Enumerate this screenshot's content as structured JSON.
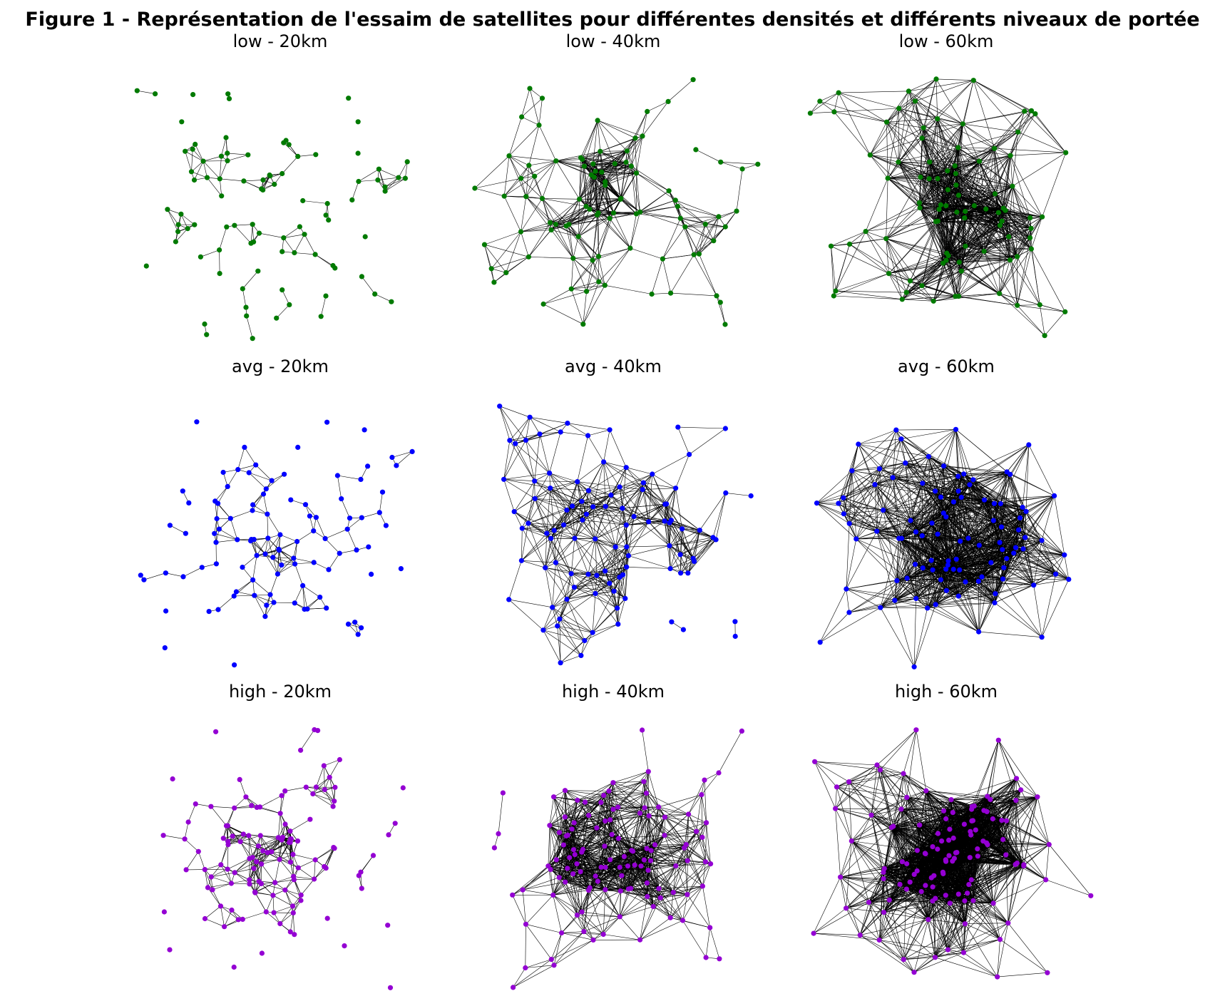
{
  "figure": {
    "title": "Figure 1 - Représentation de l'essaim de satellites pour différentes densités et différents niveaux de portée"
  },
  "panels": [
    {
      "title": "low - 20km",
      "density": "low",
      "range_km": 20,
      "node_color": "#007a00",
      "node_count": 90,
      "seed": 11
    },
    {
      "title": "low - 40km",
      "density": "low",
      "range_km": 40,
      "node_color": "#007a00",
      "node_count": 90,
      "seed": 12
    },
    {
      "title": "low - 60km",
      "density": "low",
      "range_km": 60,
      "node_color": "#007a00",
      "node_count": 90,
      "seed": 13
    },
    {
      "title": "avg - 20km",
      "density": "avg",
      "range_km": 20,
      "node_color": "#0000ff",
      "node_count": 100,
      "seed": 21
    },
    {
      "title": "avg - 40km",
      "density": "avg",
      "range_km": 40,
      "node_color": "#0000ff",
      "node_count": 100,
      "seed": 22
    },
    {
      "title": "avg - 60km",
      "density": "avg",
      "range_km": 60,
      "node_color": "#0000ff",
      "node_count": 100,
      "seed": 23
    },
    {
      "title": "high - 20km",
      "density": "high",
      "range_km": 20,
      "node_color": "#9400d3",
      "node_count": 120,
      "seed": 31
    },
    {
      "title": "high - 40km",
      "density": "high",
      "range_km": 40,
      "node_color": "#9400d3",
      "node_count": 120,
      "seed": 32
    },
    {
      "title": "high - 60km",
      "density": "high",
      "range_km": 60,
      "node_color": "#9400d3",
      "node_count": 120,
      "seed": 33
    }
  ]
}
